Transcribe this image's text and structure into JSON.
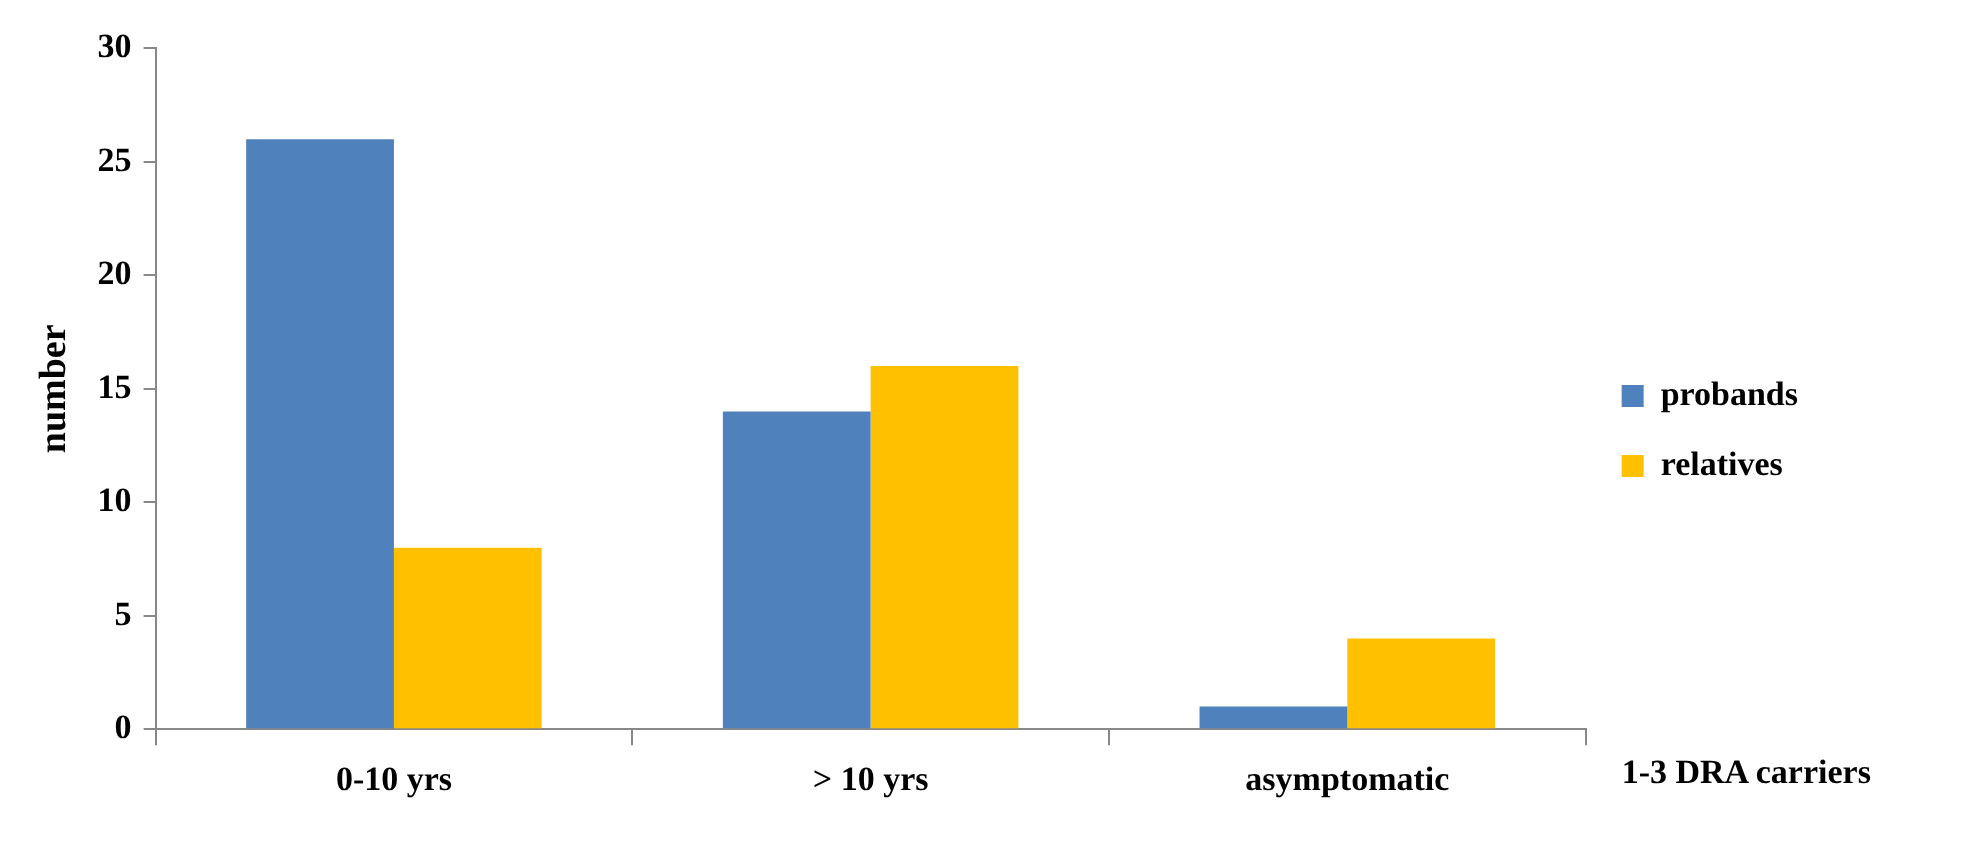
{
  "chart_data": {
    "type": "bar",
    "ylabel": "number",
    "xlabel": "1-3 DRA carriers",
    "categories": [
      "0-10 yrs",
      "> 10 yrs",
      "asymptomatic"
    ],
    "series": [
      {
        "name": "probands",
        "color": "#4f81bd",
        "values": [
          26,
          14,
          1
        ]
      },
      {
        "name": "relatives",
        "color": "#ffc000",
        "values": [
          8,
          16,
          4
        ]
      }
    ],
    "ylim": [
      0,
      30
    ],
    "yticks": [
      0,
      5,
      10,
      15,
      20,
      25,
      30
    ],
    "grid": false,
    "legend": "right"
  }
}
